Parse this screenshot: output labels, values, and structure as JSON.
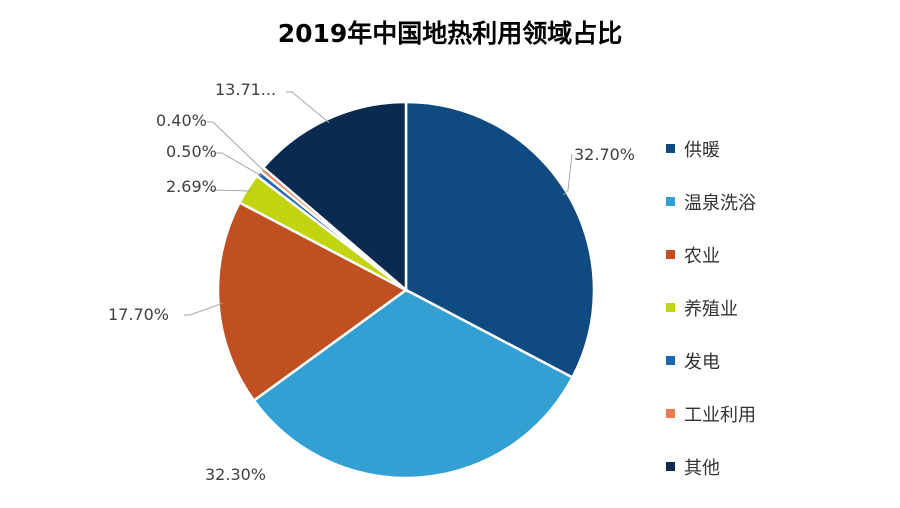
{
  "chart_data": {
    "type": "pie",
    "title": "2019年中国地热利用领域占比",
    "legend_position": "right",
    "slices": [
      {
        "name": "供暖",
        "value": 32.7,
        "label": "32.70%",
        "color": "#0f4a80"
      },
      {
        "name": "温泉洗浴",
        "value": 32.3,
        "label": "32.30%",
        "color": "#33a0d3"
      },
      {
        "name": "农业",
        "value": 17.7,
        "label": "17.70%",
        "color": "#c04f22"
      },
      {
        "name": "养殖业",
        "value": 2.69,
        "label": "2.69%",
        "color": "#c1d40f"
      },
      {
        "name": "发电",
        "value": 0.5,
        "label": "0.50%",
        "color": "#1d67b4"
      },
      {
        "name": "工业利用",
        "value": 0.4,
        "label": "0.40%",
        "color": "#ea7c52"
      },
      {
        "name": "其他",
        "value": 13.71,
        "label": "13.71...",
        "color": "#0b2a50"
      }
    ]
  }
}
